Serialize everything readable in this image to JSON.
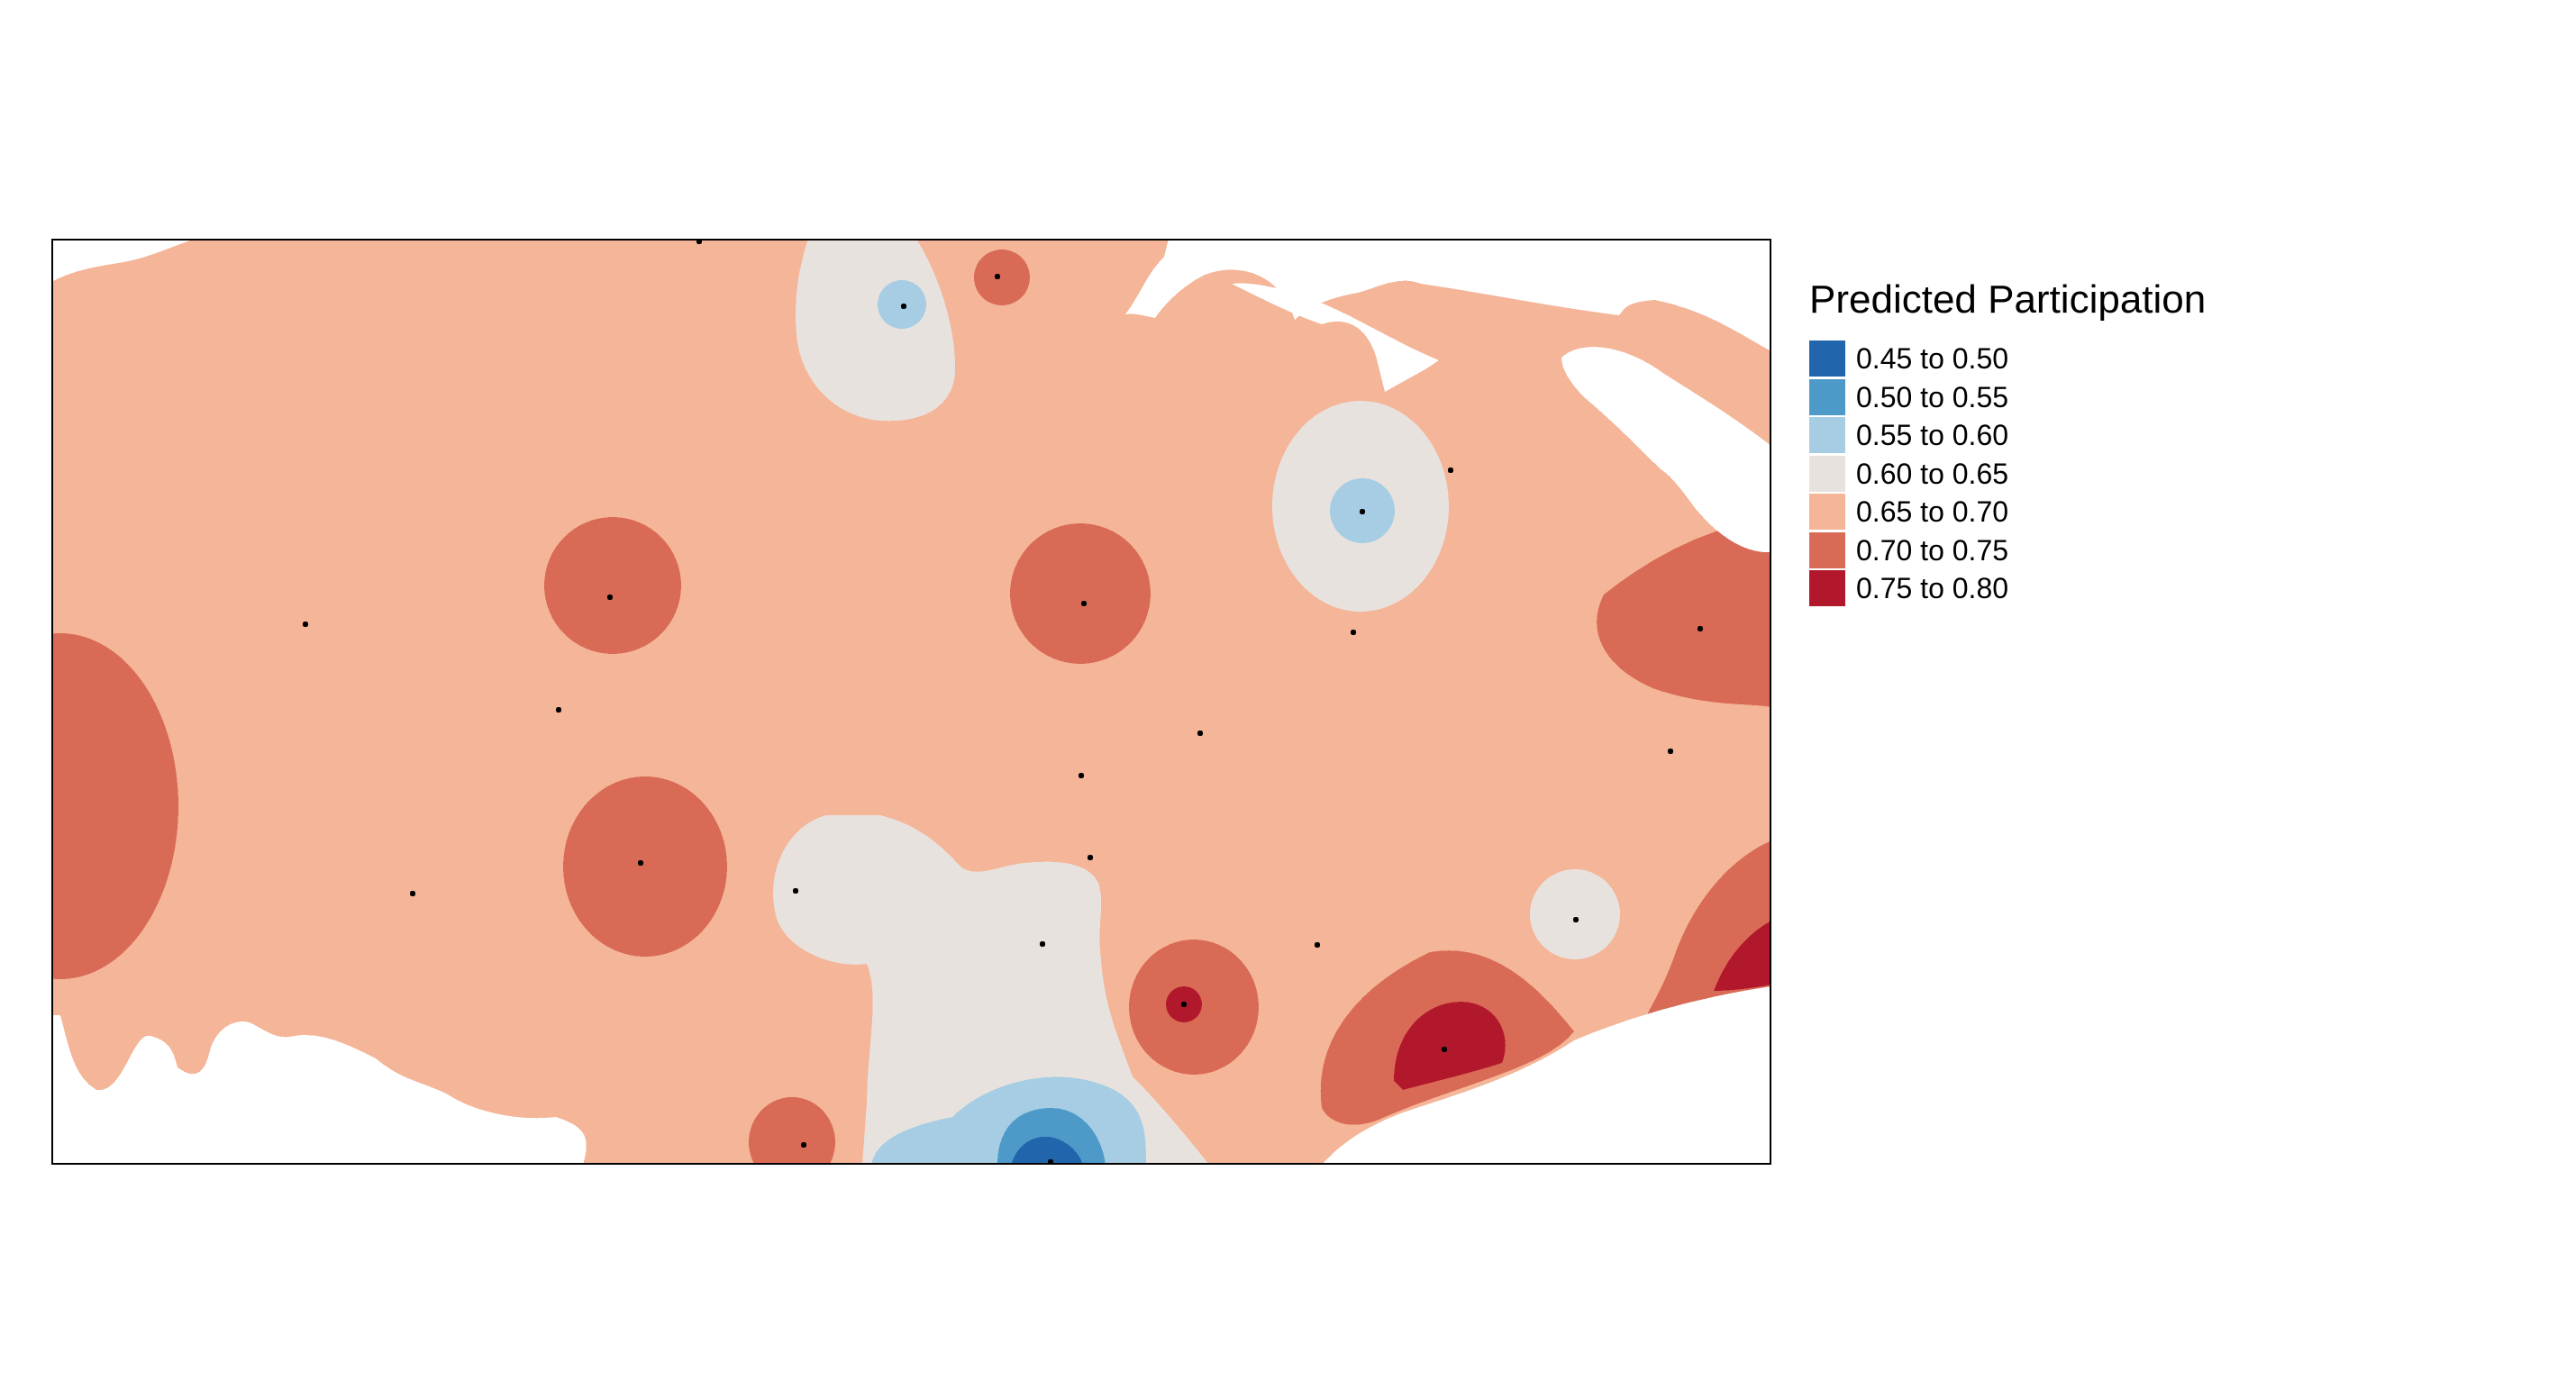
{
  "legend": {
    "title": "Predicted Participation",
    "items": [
      {
        "label": "0.45 to 0.50",
        "color": "#2166ac"
      },
      {
        "label": "0.50 to 0.55",
        "color": "#4d9ac8"
      },
      {
        "label": "0.55 to 0.60",
        "color": "#a6cde3"
      },
      {
        "label": "0.60 to 0.65",
        "color": "#e8e2de"
      },
      {
        "label": "0.65 to 0.70",
        "color": "#f4b598"
      },
      {
        "label": "0.70 to 0.75",
        "color": "#d96b56"
      },
      {
        "label": "0.75 to 0.80",
        "color": "#b2182b"
      }
    ]
  },
  "map": {
    "background_color": "#f4b598",
    "water_color": "#ffffff",
    "frame_color": "#000000",
    "point_color": "#000000"
  }
}
